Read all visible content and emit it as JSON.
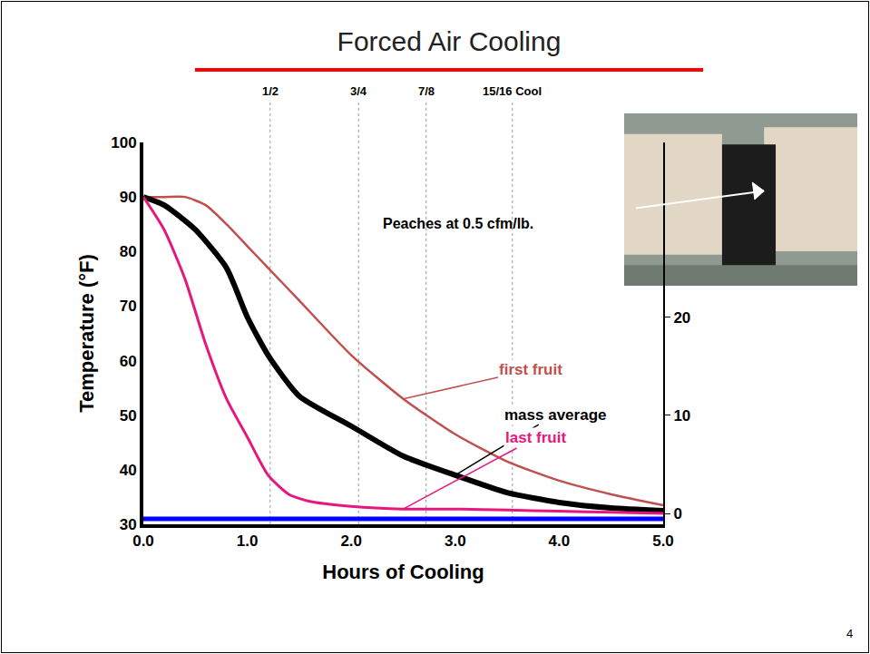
{
  "chart_data": {
    "type": "line",
    "title": "Forced Air Cooling",
    "subtitle": "Peaches at 0.5 cfm/lb.",
    "x_label": "Hours of Cooling",
    "y_label": "Temperature (°F)",
    "xlim": [
      0,
      5
    ],
    "xticks": [
      {
        "value": 0,
        "label": "0.0"
      },
      {
        "value": 1,
        "label": "1.0"
      },
      {
        "value": 2,
        "label": "2.0"
      },
      {
        "value": 3,
        "label": "3.0"
      },
      {
        "value": 4,
        "label": "4.0"
      },
      {
        "value": 5,
        "label": "5.0"
      }
    ],
    "ylim": [
      30,
      100
    ],
    "yticks": [
      30,
      40,
      50,
      60,
      70,
      80,
      90,
      100
    ],
    "y2lim": [
      -1.1,
      37.8
    ],
    "y2ticks": [
      0,
      10,
      20
    ],
    "grid": false,
    "cooling_marks": [
      {
        "x": 1.22,
        "label": "1/2"
      },
      {
        "x": 2.07,
        "label": "3/4"
      },
      {
        "x": 2.72,
        "label": "7/8"
      },
      {
        "x": 3.55,
        "label": "15/16 Cool"
      }
    ],
    "page_number": "4",
    "series": [
      {
        "name": "first fruit",
        "color": "#c0504d",
        "line_style": "solid",
        "x": [
          0,
          0.2,
          0.4,
          0.6,
          0.8,
          1.0,
          1.2,
          1.5,
          2.0,
          2.5,
          3.0,
          3.5,
          4.0,
          4.5,
          5.0
        ],
        "values": [
          90,
          90,
          90,
          88.5,
          85,
          81,
          77,
          71,
          61,
          53,
          46.5,
          41.5,
          38,
          35.5,
          33.5
        ]
      },
      {
        "name": "mass average",
        "color": "#000000",
        "line_style": "solid",
        "x": [
          0,
          0.2,
          0.5,
          0.8,
          1.0,
          1.2,
          1.5,
          2.0,
          2.5,
          3.0,
          3.5,
          4.0,
          4.5,
          5.0
        ],
        "values": [
          90,
          88.5,
          84,
          77,
          68,
          61,
          53.5,
          48,
          42.5,
          39,
          35.8,
          34,
          33,
          32.5
        ]
      },
      {
        "name": "last fruit",
        "color": "#e6187f",
        "line_style": "solid",
        "x": [
          0,
          0.2,
          0.4,
          0.6,
          0.8,
          1.0,
          1.2,
          1.4,
          1.6,
          2.0,
          2.5,
          3.0,
          3.5,
          4.0,
          4.5,
          5.0
        ],
        "values": [
          90,
          84,
          75,
          63,
          53,
          46,
          39,
          35.5,
          34.2,
          33.3,
          32.8,
          32.8,
          32.6,
          32.4,
          32.2,
          32
        ]
      },
      {
        "color": "#0000ff",
        "line_style": "solid",
        "x": [
          0,
          5
        ],
        "values": [
          31,
          31
        ]
      }
    ]
  }
}
